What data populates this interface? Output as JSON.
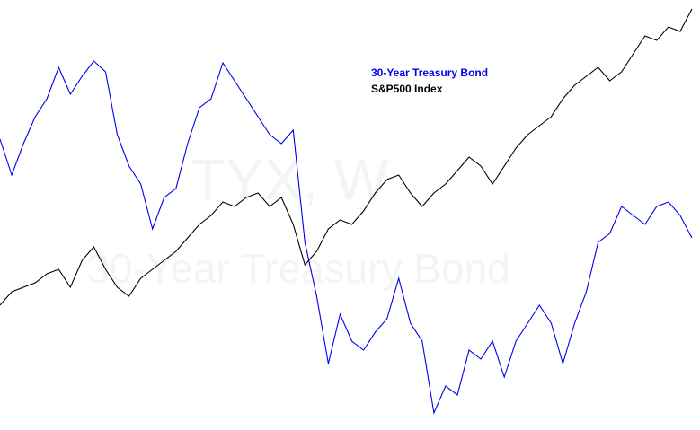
{
  "chart_data": {
    "type": "line",
    "watermark": [
      "TYX, W",
      "30-Year Treasury Bond"
    ],
    "categories": [
      null,
      null,
      null,
      null,
      null,
      null,
      null,
      null,
      null,
      null,
      null,
      null,
      null,
      null,
      null,
      null,
      null,
      null,
      null,
      null,
      null,
      null,
      null,
      null,
      null,
      null,
      null,
      null,
      null,
      null,
      null,
      null,
      null,
      null,
      null,
      null,
      null,
      null,
      null,
      null,
      null,
      null,
      null,
      null,
      null,
      null,
      null,
      null,
      null,
      null,
      null,
      null,
      null,
      null,
      null,
      null,
      null,
      null,
      null,
      null
    ],
    "ylim": [
      0,
      479
    ],
    "series": [
      {
        "name": "30-Year Treasury Bond",
        "color": "#0000ee",
        "values": [
          324,
          284,
          319,
          349,
          369,
          404,
          374,
          394,
          411,
          399,
          329,
          294,
          274,
          224,
          259,
          269,
          319,
          359,
          369,
          409,
          389,
          369,
          349,
          329,
          319,
          334,
          209,
          149,
          74,
          129,
          99,
          89,
          109,
          124,
          169,
          119,
          99,
          19,
          49,
          39,
          89,
          79,
          99,
          59,
          99,
          119,
          139,
          119,
          74,
          119,
          154,
          209,
          219,
          249,
          239,
          229,
          249,
          254,
          239,
          214
        ]
      },
      {
        "name": "S&P500 Index",
        "color": "#000000",
        "values": [
          139,
          154,
          159,
          164,
          174,
          179,
          159,
          189,
          204,
          179,
          159,
          149,
          169,
          179,
          189,
          199,
          214,
          229,
          239,
          254,
          249,
          259,
          264,
          249,
          259,
          229,
          184,
          199,
          224,
          234,
          229,
          244,
          264,
          279,
          284,
          264,
          249,
          264,
          274,
          289,
          304,
          294,
          274,
          294,
          314,
          329,
          339,
          349,
          369,
          384,
          394,
          404,
          389,
          399,
          419,
          439,
          434,
          449,
          444,
          469
        ]
      }
    ],
    "legend": "top-center"
  }
}
